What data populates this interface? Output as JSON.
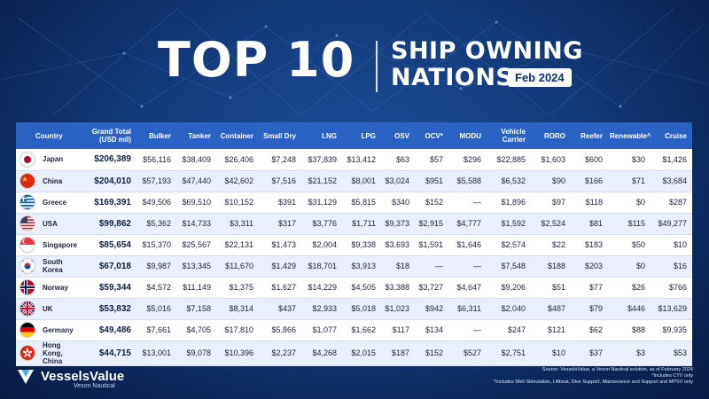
{
  "title": {
    "big": "TOP 10",
    "line1": "SHIP OWNING",
    "line2": "NATIONS",
    "date": "Feb 2024"
  },
  "columns": [
    "Country",
    "Grand Total (USD mil)",
    "Bulker",
    "Tanker",
    "Container",
    "Small Dry",
    "LNG",
    "LPG",
    "OSV",
    "OCV*",
    "MODU",
    "Vehicle Carrier",
    "RORO",
    "Reefer",
    "Renewable^",
    "Cruise"
  ],
  "rows": [
    {
      "country": "Japan",
      "flag": "japan-flag-icon",
      "cells": [
        "$206,389",
        "$56,116",
        "$38,409",
        "$26,406",
        "$7,248",
        "$37,839",
        "$13,412",
        "$63",
        "$57",
        "$296",
        "$22,885",
        "$1,603",
        "$600",
        "$30",
        "$1,426"
      ]
    },
    {
      "country": "China",
      "flag": "china-flag-icon",
      "cells": [
        "$204,010",
        "$57,193",
        "$47,440",
        "$42,602",
        "$7,516",
        "$21,152",
        "$8,001",
        "$3,024",
        "$951",
        "$5,588",
        "$6,532",
        "$90",
        "$166",
        "$71",
        "$3,684"
      ]
    },
    {
      "country": "Greece",
      "flag": "greece-flag-icon",
      "cells": [
        "$169,391",
        "$49,506",
        "$69,510",
        "$10,152",
        "$391",
        "$31,129",
        "$5,815",
        "$340",
        "$152",
        "—",
        "$1,896",
        "$97",
        "$118",
        "$0",
        "$287"
      ]
    },
    {
      "country": "USA",
      "flag": "usa-flag-icon",
      "cells": [
        "$99,862",
        "$5,362",
        "$14,733",
        "$3,311",
        "$317",
        "$3,776",
        "$1,711",
        "$9,373",
        "$2,915",
        "$4,777",
        "$1,592",
        "$2,524",
        "$81",
        "$115",
        "$49,277"
      ]
    },
    {
      "country": "Singapore",
      "flag": "singapore-flag-icon",
      "cells": [
        "$85,654",
        "$15,370",
        "$25,567",
        "$22,131",
        "$1,473",
        "$2,004",
        "$9,338",
        "$3,693",
        "$1,591",
        "$1,646",
        "$2,574",
        "$22",
        "$183",
        "$50",
        "$10"
      ]
    },
    {
      "country": "South Korea",
      "flag": "south-korea-flag-icon",
      "cells": [
        "$67,018",
        "$9,987",
        "$13,345",
        "$11,670",
        "$1,429",
        "$18,701",
        "$3,913",
        "$18",
        "—",
        "—",
        "$7,548",
        "$188",
        "$203",
        "$0",
        "$16"
      ]
    },
    {
      "country": "Norway",
      "flag": "norway-flag-icon",
      "cells": [
        "$59,344",
        "$4,572",
        "$11,149",
        "$1,375",
        "$1,627",
        "$14,229",
        "$4,505",
        "$3,388",
        "$3,727",
        "$4,647",
        "$9,206",
        "$51",
        "$77",
        "$26",
        "$766"
      ]
    },
    {
      "country": "UK",
      "flag": "uk-flag-icon",
      "cells": [
        "$53,832",
        "$5,016",
        "$7,158",
        "$8,314",
        "$437",
        "$2,933",
        "$5,018",
        "$1,023",
        "$942",
        "$6,311",
        "$2,040",
        "$487",
        "$79",
        "$446",
        "$13,629"
      ]
    },
    {
      "country": "Germany",
      "flag": "germany-flag-icon",
      "cells": [
        "$49,486",
        "$7,661",
        "$4,705",
        "$17,810",
        "$5,866",
        "$1,077",
        "$1,662",
        "$117",
        "$134",
        "—",
        "$247",
        "$121",
        "$62",
        "$88",
        "$9,935"
      ]
    },
    {
      "country": "Hong Kong, China",
      "flag": "hong-kong-flag-icon",
      "cells": [
        "$44,715",
        "$13,001",
        "$9,078",
        "$10,396",
        "$2,237",
        "$4,268",
        "$2,015",
        "$187",
        "$152",
        "$527",
        "$2,751",
        "$10",
        "$37",
        "$3",
        "$53"
      ]
    }
  ],
  "logo": {
    "name": "VesselsValue",
    "sub": "Veson Nautical"
  },
  "footnotes": [
    "Source: VesselsValue, a Veson Nautical solution, as of February 2024",
    "*Includes CTV only",
    "^Includes Well Stimulation, Liftboat, Dive Support, Maintenance and Support and MPSV only"
  ],
  "colors": {
    "header_row": "#2a63c4",
    "background": "#123a7a",
    "row_alt": "#eaf0fb"
  }
}
